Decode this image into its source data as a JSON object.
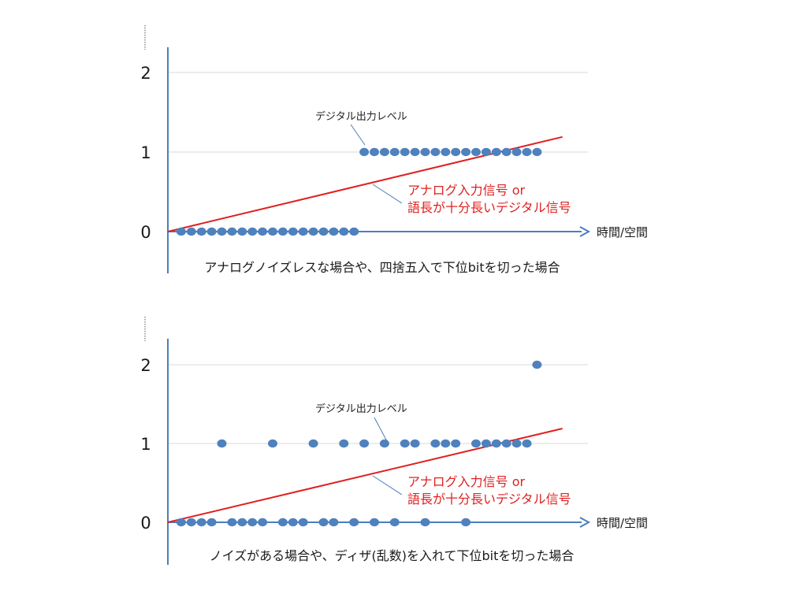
{
  "colors": {
    "axis": "#4a7ebb",
    "grid": "#d9d9d9",
    "point": "#4f81bd",
    "analog_line": "#e02020",
    "analog_text": "#e02020",
    "leader": "#4a7ebb"
  },
  "panels": [
    {
      "y_ticks": [
        "0",
        "1",
        "2"
      ],
      "x_axis_label": "時間/空間",
      "callout_label": "デジタル出力レベル",
      "analog_label_line1": "アナログ入力信号 or",
      "analog_label_line2": "語長が十分長いデジタル信号",
      "caption": "アナログノイズレスな場合や、四捨五入で下位bitを切った場合"
    },
    {
      "y_ticks": [
        "0",
        "1",
        "2"
      ],
      "x_axis_label": "時間/空間",
      "callout_label": "デジタル出力レベル",
      "analog_label_line1": "アナログ入力信号 or",
      "analog_label_line2": "語長が十分長いデジタル信号",
      "caption": "ノイズがある場合や、ディザ(乱数)を入れて下位bitを切った場合"
    }
  ],
  "chart_data": [
    {
      "type": "scatter",
      "xlabel": "時間/空間",
      "ylabel": "",
      "ylim": [
        0,
        2
      ],
      "yticks": [
        0,
        1,
        2
      ],
      "grid": true,
      "series": [
        {
          "points": [
            [
              1,
              0
            ],
            [
              2,
              0
            ],
            [
              3,
              0
            ],
            [
              4,
              0
            ],
            [
              5,
              0
            ],
            [
              6,
              0
            ],
            [
              7,
              0
            ],
            [
              8,
              0
            ],
            [
              9,
              0
            ],
            [
              10,
              0
            ],
            [
              11,
              0
            ],
            [
              12,
              0
            ],
            [
              13,
              0
            ],
            [
              14,
              0
            ],
            [
              15,
              0
            ],
            [
              16,
              0
            ],
            [
              17,
              0
            ],
            [
              18,
              0
            ],
            [
              19,
              1
            ],
            [
              20,
              1
            ],
            [
              21,
              1
            ],
            [
              22,
              1
            ],
            [
              23,
              1
            ],
            [
              24,
              1
            ],
            [
              25,
              1
            ],
            [
              26,
              1
            ],
            [
              27,
              1
            ],
            [
              28,
              1
            ],
            [
              29,
              1
            ],
            [
              30,
              1
            ],
            [
              31,
              1
            ],
            [
              32,
              1
            ],
            [
              33,
              1
            ],
            [
              34,
              1
            ],
            [
              35,
              1
            ],
            [
              36,
              1
            ]
          ]
        }
      ],
      "line": {
        "from": [
          0,
          0
        ],
        "to": [
          38.5,
          1.19
        ]
      }
    },
    {
      "type": "scatter",
      "xlabel": "時間/空間",
      "ylabel": "",
      "ylim": [
        0,
        2
      ],
      "yticks": [
        0,
        1,
        2
      ],
      "grid": true,
      "series": [
        {
          "points": [
            [
              1,
              0
            ],
            [
              2,
              0
            ],
            [
              3,
              0
            ],
            [
              4,
              0
            ],
            [
              5,
              1
            ],
            [
              6,
              0
            ],
            [
              7,
              0
            ],
            [
              8,
              0
            ],
            [
              9,
              0
            ],
            [
              10,
              1
            ],
            [
              11,
              0
            ],
            [
              12,
              0
            ],
            [
              13,
              0
            ],
            [
              14,
              1
            ],
            [
              15,
              0
            ],
            [
              16,
              0
            ],
            [
              17,
              1
            ],
            [
              18,
              0
            ],
            [
              19,
              1
            ],
            [
              20,
              0
            ],
            [
              21,
              1
            ],
            [
              22,
              0
            ],
            [
              23,
              1
            ],
            [
              24,
              1
            ],
            [
              25,
              0
            ],
            [
              26,
              1
            ],
            [
              27,
              1
            ],
            [
              28,
              1
            ],
            [
              29,
              0
            ],
            [
              30,
              1
            ],
            [
              31,
              1
            ],
            [
              32,
              1
            ],
            [
              33,
              1
            ],
            [
              34,
              1
            ],
            [
              35,
              1
            ],
            [
              36,
              2
            ]
          ]
        }
      ],
      "line": {
        "from": [
          0,
          0
        ],
        "to": [
          38.5,
          1.19
        ]
      }
    }
  ]
}
